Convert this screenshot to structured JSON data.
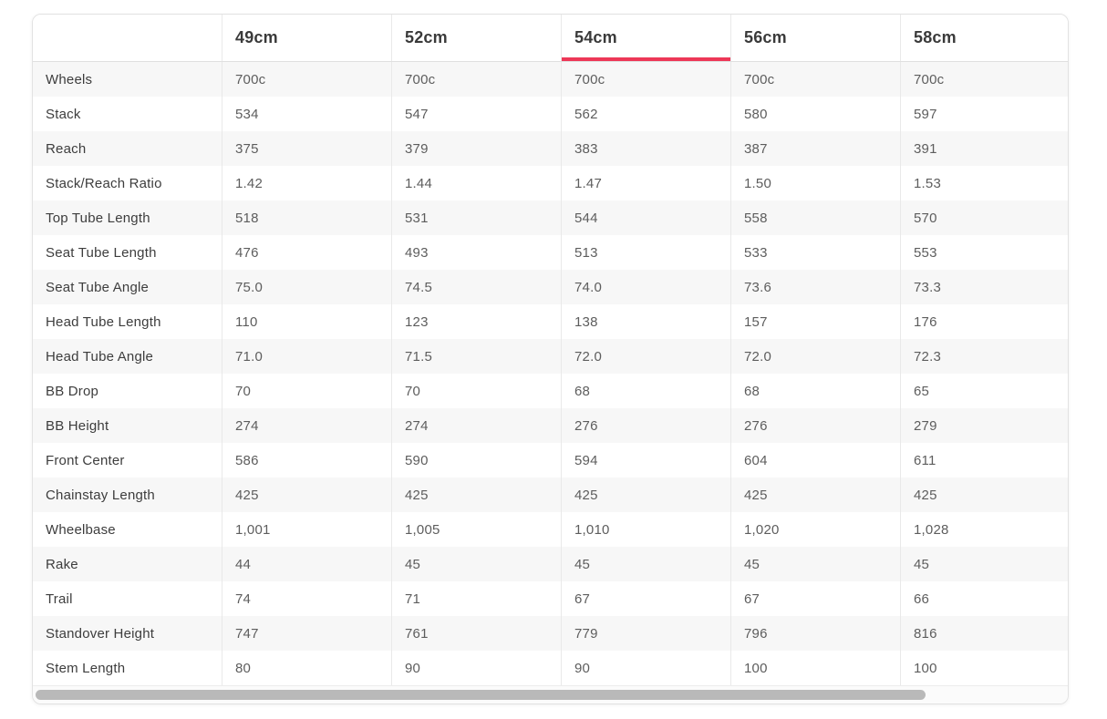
{
  "colors": {
    "accent": "#ed3757",
    "stripe": "#f7f7f7",
    "thumb": "#b9b9b9"
  },
  "table": {
    "sizes": [
      "49cm",
      "52cm",
      "54cm",
      "56cm",
      "58cm"
    ],
    "active_size": "54cm",
    "rows": [
      {
        "label": "Wheels",
        "values": [
          "700c",
          "700c",
          "700c",
          "700c",
          "700c"
        ]
      },
      {
        "label": "Stack",
        "values": [
          "534",
          "547",
          "562",
          "580",
          "597"
        ]
      },
      {
        "label": "Reach",
        "values": [
          "375",
          "379",
          "383",
          "387",
          "391"
        ]
      },
      {
        "label": "Stack/Reach Ratio",
        "values": [
          "1.42",
          "1.44",
          "1.47",
          "1.50",
          "1.53"
        ]
      },
      {
        "label": "Top Tube Length",
        "values": [
          "518",
          "531",
          "544",
          "558",
          "570"
        ]
      },
      {
        "label": "Seat Tube Length",
        "values": [
          "476",
          "493",
          "513",
          "533",
          "553"
        ]
      },
      {
        "label": "Seat Tube Angle",
        "values": [
          "75.0",
          "74.5",
          "74.0",
          "73.6",
          "73.3"
        ]
      },
      {
        "label": "Head Tube Length",
        "values": [
          "110",
          "123",
          "138",
          "157",
          "176"
        ]
      },
      {
        "label": "Head Tube Angle",
        "values": [
          "71.0",
          "71.5",
          "72.0",
          "72.0",
          "72.3"
        ]
      },
      {
        "label": "BB Drop",
        "values": [
          "70",
          "70",
          "68",
          "68",
          "65"
        ]
      },
      {
        "label": "BB Height",
        "values": [
          "274",
          "274",
          "276",
          "276",
          "279"
        ]
      },
      {
        "label": "Front Center",
        "values": [
          "586",
          "590",
          "594",
          "604",
          "611"
        ]
      },
      {
        "label": "Chainstay Length",
        "values": [
          "425",
          "425",
          "425",
          "425",
          "425"
        ]
      },
      {
        "label": "Wheelbase",
        "values": [
          "1,001",
          "1,005",
          "1,010",
          "1,020",
          "1,028"
        ]
      },
      {
        "label": "Rake",
        "values": [
          "44",
          "45",
          "45",
          "45",
          "45"
        ]
      },
      {
        "label": "Trail",
        "values": [
          "74",
          "71",
          "67",
          "67",
          "66"
        ]
      },
      {
        "label": "Standover Height",
        "values": [
          "747",
          "761",
          "779",
          "796",
          "816"
        ]
      },
      {
        "label": "Stem Length",
        "values": [
          "80",
          "90",
          "90",
          "100",
          "100"
        ]
      }
    ]
  }
}
